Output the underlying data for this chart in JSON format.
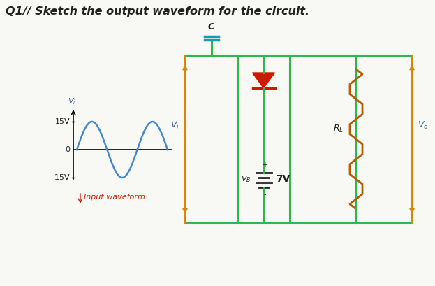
{
  "title": "Q1// Sketch the output waveform for the circuit.",
  "bg_color": "#f8f8f4",
  "circuit_outer_color": "#d4870a",
  "circuit_wire_color": "#2db84d",
  "diode_color": "#cc1a00",
  "resistor_color": "#b85a00",
  "capacitor_color": "#1a9ab0",
  "text_color_dark": "#222222",
  "text_color_blue": "#4466aa",
  "text_color_red": "#cc2200",
  "waveform_color": "#4488cc",
  "vi_label": "V_i",
  "label_15v": "15V",
  "label_0": "0",
  "label_neg15v": "-15V",
  "input_waveform_label": "Input waveform",
  "c_label": "C",
  "vi_right_label": "V_i",
  "rl_label": "R_L",
  "vo_label": "V_o",
  "vb_label": "V_B",
  "7v_label": "7V",
  "plus_label": "+",
  "minus_label": "-"
}
